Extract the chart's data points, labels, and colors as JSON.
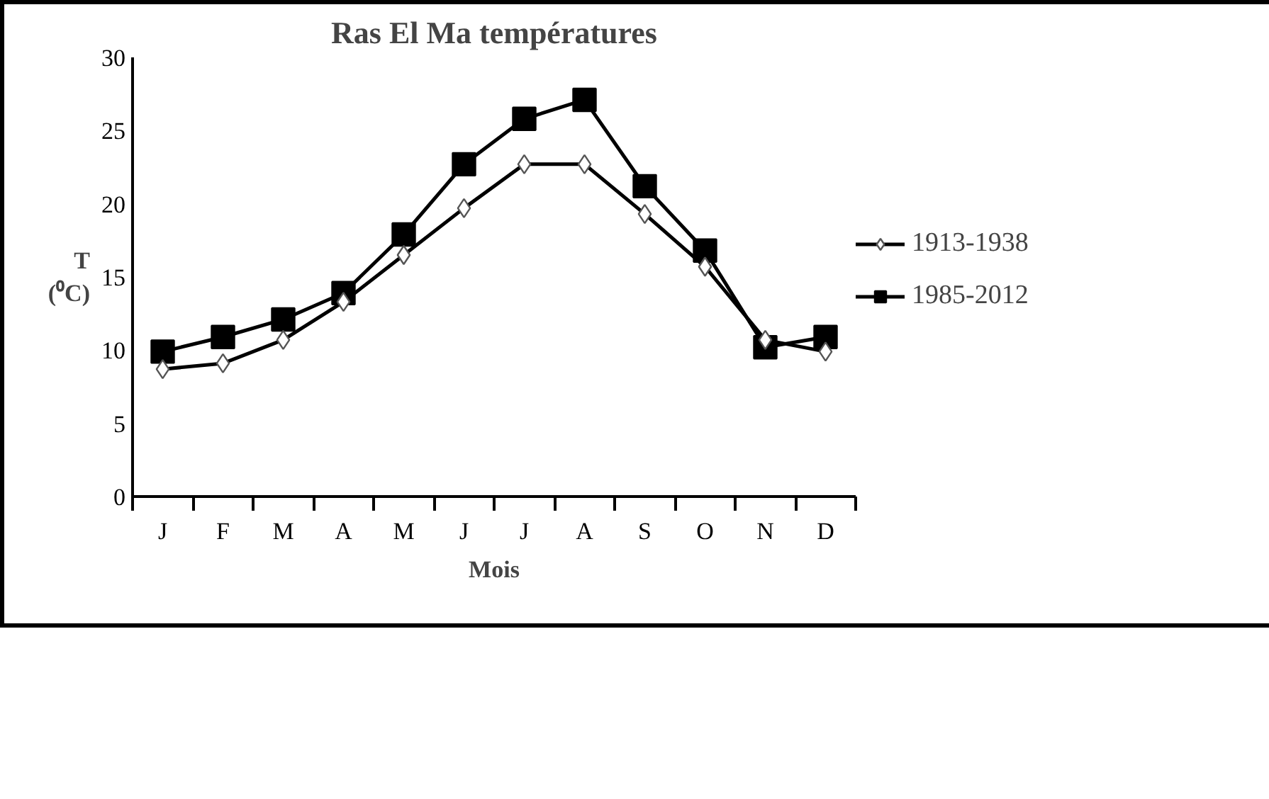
{
  "chart_data": {
    "type": "line",
    "title": "Ras El Ma températures",
    "xlabel": "Mois",
    "ylabel": "T (⁰C)",
    "categories": [
      "J",
      "F",
      "M",
      "A",
      "M",
      "J",
      "J",
      "A",
      "S",
      "O",
      "N",
      "D"
    ],
    "series": [
      {
        "name": "1913-1938",
        "color": "#000000",
        "marker": "diamond",
        "values": [
          8.7,
          9.1,
          10.7,
          13.3,
          16.5,
          19.7,
          22.7,
          22.7,
          19.3,
          15.7,
          10.7,
          9.9
        ]
      },
      {
        "name": "1985-2012",
        "color": "#000000",
        "marker": "square",
        "values": [
          9.9,
          10.9,
          12.1,
          13.9,
          17.9,
          22.7,
          25.8,
          27.1,
          21.2,
          16.8,
          10.2,
          10.9
        ]
      }
    ],
    "ylim": [
      0,
      30
    ],
    "yticks": [
      0,
      5,
      10,
      15,
      20,
      25,
      30
    ],
    "grid": false,
    "legend": "right"
  }
}
